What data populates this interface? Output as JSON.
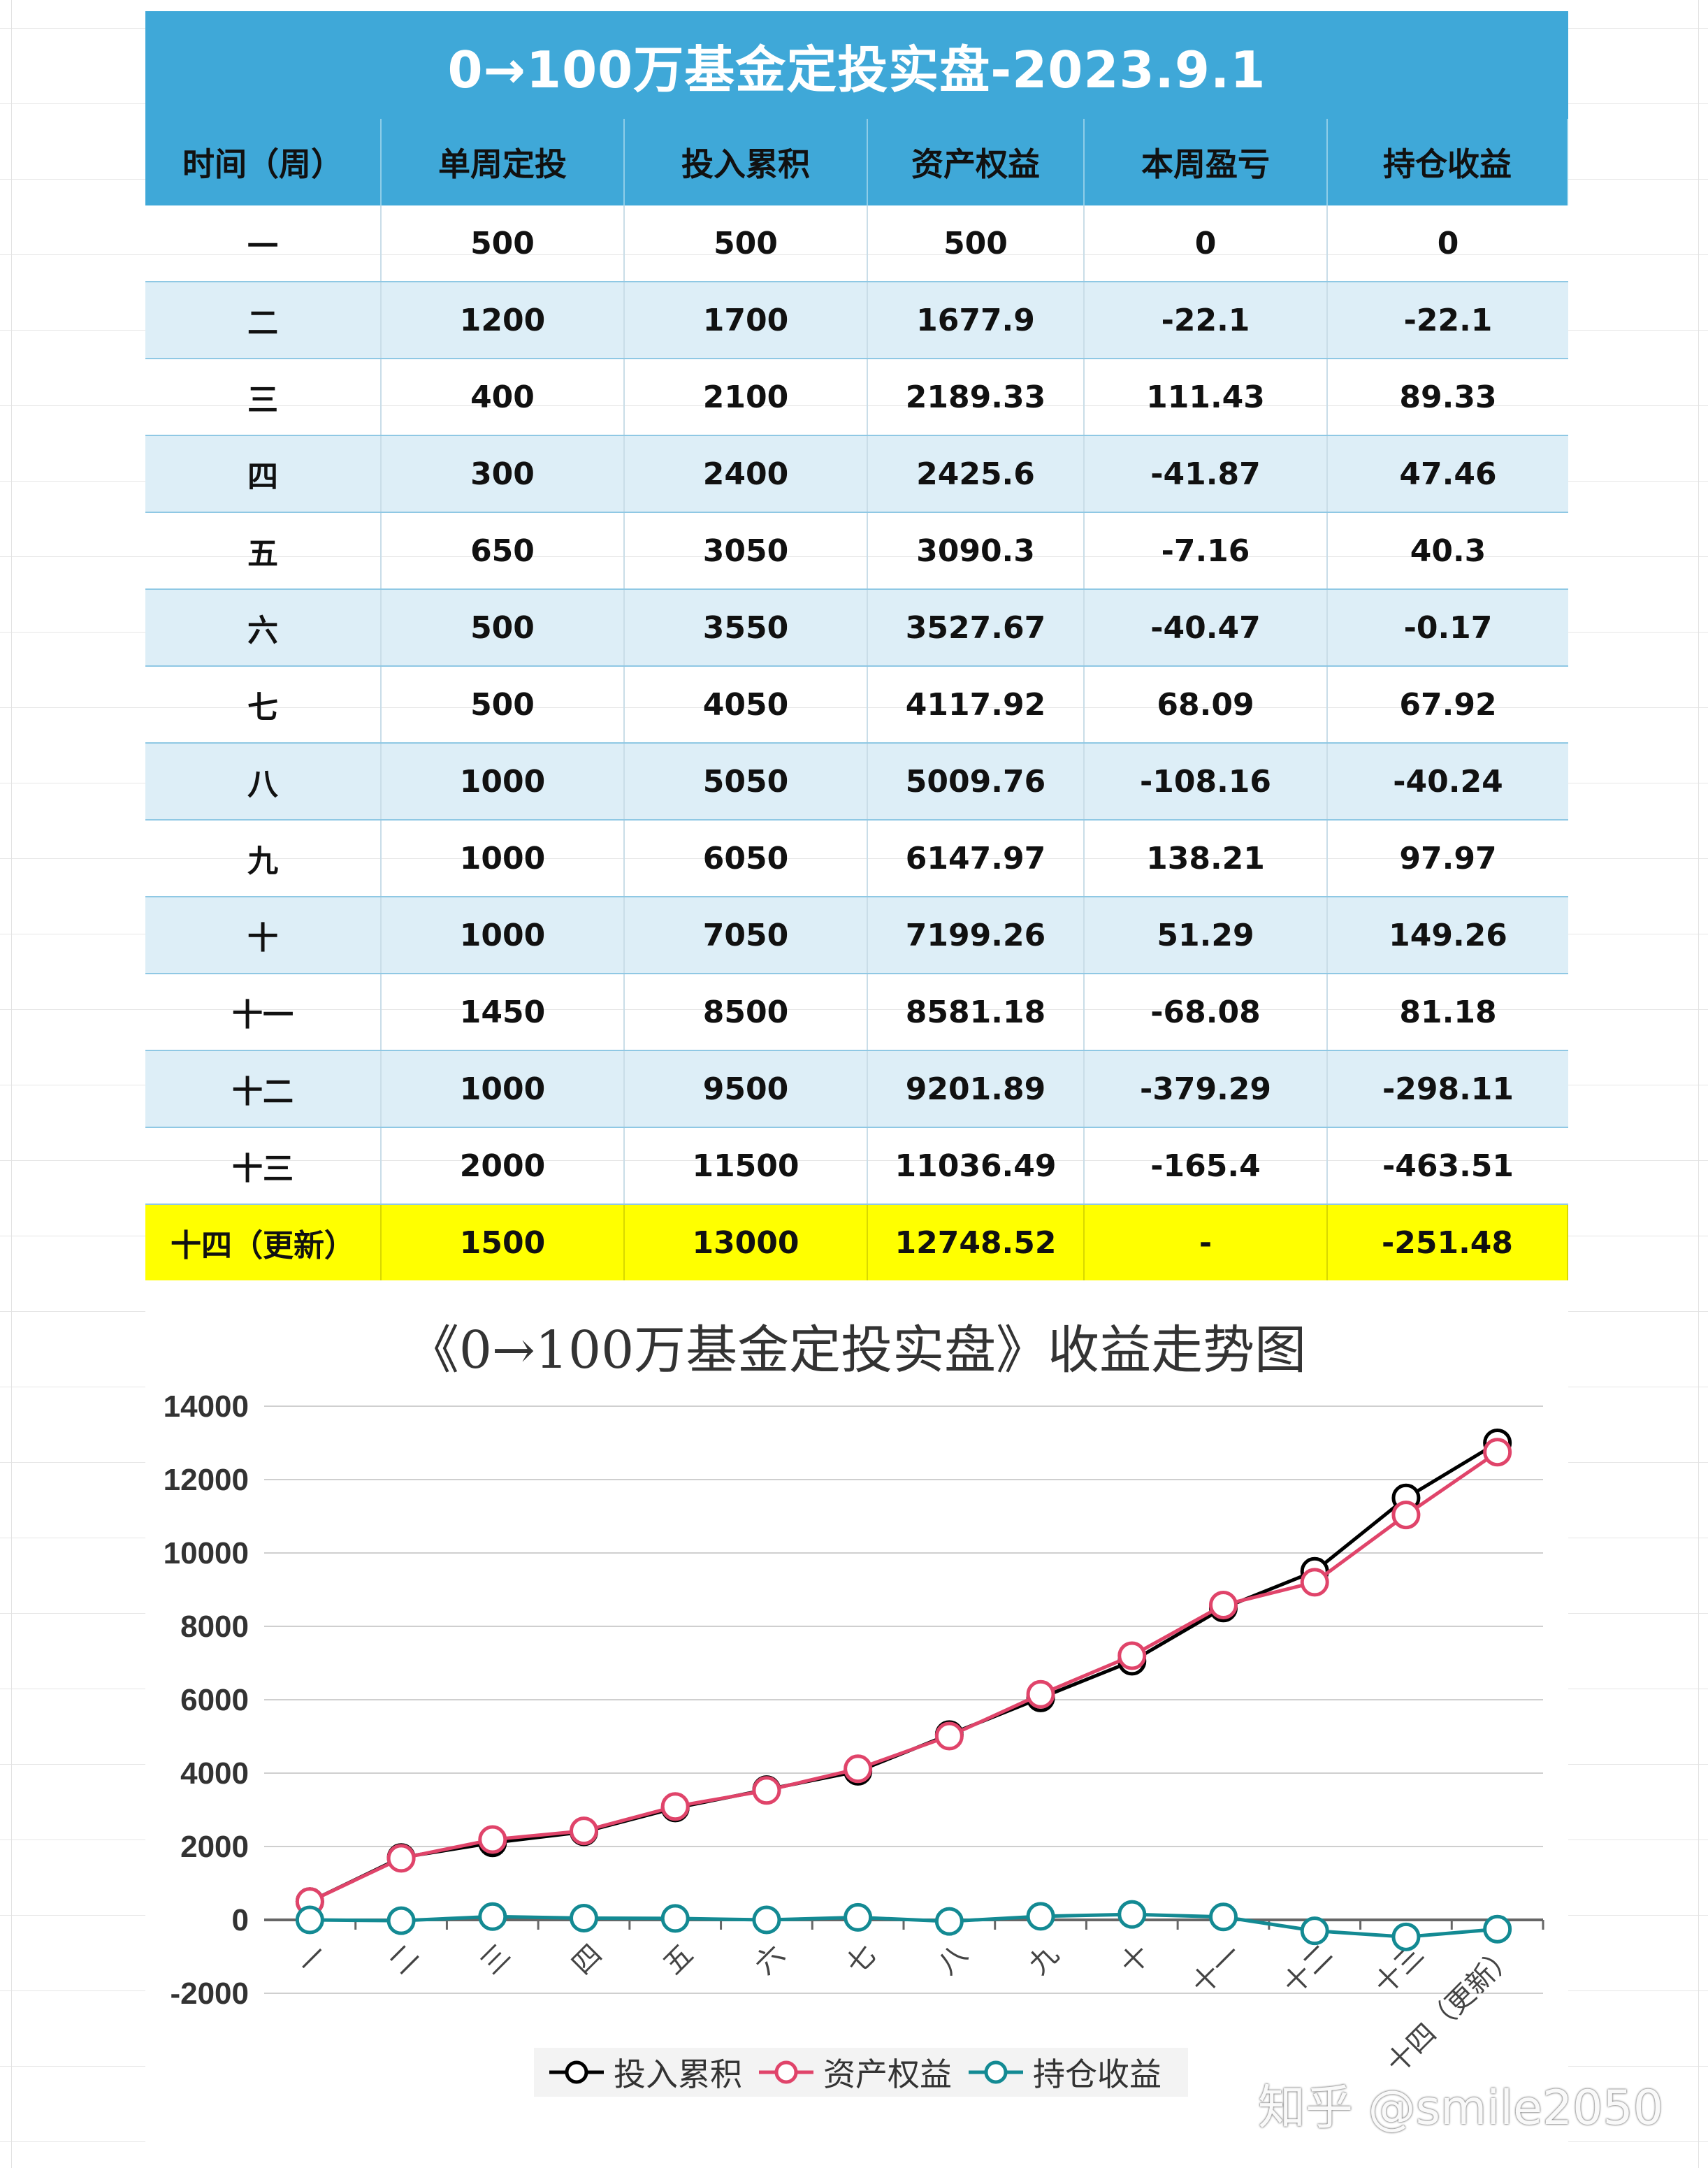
{
  "table": {
    "title": "0→100万基金定投实盘-2023.9.1",
    "headers": [
      "时间（周）",
      "单周定投",
      "投入累积",
      "资产权益",
      "本周盈亏",
      "持仓收益"
    ],
    "rows": [
      [
        "一",
        "500",
        "500",
        "500",
        "0",
        "0"
      ],
      [
        "二",
        "1200",
        "1700",
        "1677.9",
        "-22.1",
        "-22.1"
      ],
      [
        "三",
        "400",
        "2100",
        "2189.33",
        "111.43",
        "89.33"
      ],
      [
        "四",
        "300",
        "2400",
        "2425.6",
        "-41.87",
        "47.46"
      ],
      [
        "五",
        "650",
        "3050",
        "3090.3",
        "-7.16",
        "40.3"
      ],
      [
        "六",
        "500",
        "3550",
        "3527.67",
        "-40.47",
        "-0.17"
      ],
      [
        "七",
        "500",
        "4050",
        "4117.92",
        "68.09",
        "67.92"
      ],
      [
        "八",
        "1000",
        "5050",
        "5009.76",
        "-108.16",
        "-40.24"
      ],
      [
        "九",
        "1000",
        "6050",
        "6147.97",
        "138.21",
        "97.97"
      ],
      [
        "十",
        "1000",
        "7050",
        "7199.26",
        "51.29",
        "149.26"
      ],
      [
        "十一",
        "1450",
        "8500",
        "8581.18",
        "-68.08",
        "81.18"
      ],
      [
        "十二",
        "1000",
        "9500",
        "9201.89",
        "-379.29",
        "-298.11"
      ],
      [
        "十三",
        "2000",
        "11500",
        "11036.49",
        "-165.4",
        "-463.51"
      ],
      [
        "十四（更新）",
        "1500",
        "13000",
        "12748.52",
        "-",
        "-251.48"
      ]
    ]
  },
  "chart_data": {
    "type": "line",
    "title": "《0→100万基金定投实盘》收益走势图",
    "categories": [
      "一",
      "二",
      "三",
      "四",
      "五",
      "六",
      "七",
      "八",
      "九",
      "十",
      "十一",
      "十二",
      "十三",
      "十四（更新）"
    ],
    "series": [
      {
        "name": "投入累积",
        "color": "#000000",
        "values": [
          500,
          1700,
          2100,
          2400,
          3050,
          3550,
          4050,
          5050,
          6050,
          7050,
          8500,
          9500,
          11500,
          13000
        ]
      },
      {
        "name": "资产权益",
        "color": "#e0446a",
        "values": [
          500,
          1677.9,
          2189.33,
          2425.6,
          3090.3,
          3527.67,
          4117.92,
          5009.76,
          6147.97,
          7199.26,
          8581.18,
          9201.89,
          11036.49,
          12748.52
        ]
      },
      {
        "name": "持仓收益",
        "color": "#138a93",
        "values": [
          0,
          -22.1,
          89.33,
          47.46,
          40.3,
          -0.17,
          67.92,
          -40.24,
          97.97,
          149.26,
          81.18,
          -298.11,
          -463.51,
          -251.48
        ]
      }
    ],
    "ylim": [
      -2000,
      14000
    ],
    "yticks": [
      14000,
      12000,
      10000,
      8000,
      6000,
      4000,
      2000,
      0,
      -2000
    ],
    "grid": true,
    "legend": "bottom"
  },
  "watermark": "知乎 @smile2050"
}
